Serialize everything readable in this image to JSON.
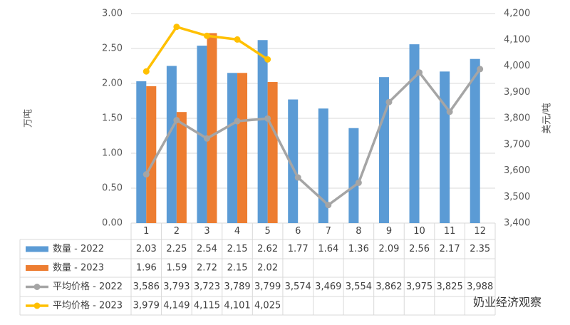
{
  "chart_data": {
    "type": "bar-line",
    "categories": [
      "1",
      "2",
      "3",
      "4",
      "5",
      "6",
      "7",
      "8",
      "9",
      "10",
      "11",
      "12"
    ],
    "y_label": "万吨",
    "y2_label": "美元/吨",
    "ylim": [
      0,
      3
    ],
    "yticks": [
      {
        "value": 0,
        "label": "0.00"
      },
      {
        "value": 0.5,
        "label": "0.50"
      },
      {
        "value": 1,
        "label": "1.00"
      },
      {
        "value": 1.5,
        "label": "1.50"
      },
      {
        "value": 2,
        "label": "2.00"
      },
      {
        "value": 2.5,
        "label": "2.50"
      },
      {
        "value": 3,
        "label": "3.00"
      }
    ],
    "y2lim": [
      3400,
      4200
    ],
    "y2ticks": [
      {
        "value": 3400,
        "label": "3,400"
      },
      {
        "value": 3500,
        "label": "3,500"
      },
      {
        "value": 3600,
        "label": "3,600"
      },
      {
        "value": 3700,
        "label": "3,700"
      },
      {
        "value": 3800,
        "label": "3,800"
      },
      {
        "value": 3900,
        "label": "3,900"
      },
      {
        "value": 4000,
        "label": "4,000"
      },
      {
        "value": 4100,
        "label": "4,100"
      },
      {
        "value": 4200,
        "label": "4,200"
      }
    ],
    "grid": true,
    "series": [
      {
        "name": "数量 - 2022",
        "type": "bar",
        "color": "#5b9bd5",
        "values": [
          2.03,
          2.25,
          2.54,
          2.15,
          2.62,
          1.77,
          1.64,
          1.36,
          2.09,
          2.56,
          2.17,
          2.35
        ]
      },
      {
        "name": "数量 - 2023",
        "type": "bar",
        "color": "#ed7d31",
        "values": [
          1.96,
          1.59,
          2.72,
          2.15,
          2.02,
          null,
          null,
          null,
          null,
          null,
          null,
          null
        ]
      },
      {
        "name": "平均价格 - 2022",
        "type": "line",
        "axis": "y2",
        "color": "#a5a5a5",
        "values": [
          3586,
          3793,
          3723,
          3789,
          3799,
          3574,
          3469,
          3554,
          3862,
          3975,
          3825,
          3988
        ],
        "value_labels": [
          "3,586",
          "3,793",
          "3,723",
          "3,789",
          "3,799",
          "3,574",
          "3,469",
          "3,554",
          "3,862",
          "3,975",
          "3,825",
          "3,988"
        ]
      },
      {
        "name": "平均价格 - 2023",
        "type": "line",
        "axis": "y2",
        "color": "#ffc000",
        "values": [
          3979,
          4149,
          4115,
          4101,
          4025,
          null,
          null,
          null,
          null,
          null,
          null,
          null
        ],
        "value_labels": [
          "3,979",
          "4,149",
          "4,115",
          "4,101",
          "4,025",
          null,
          null,
          null,
          null,
          null,
          null,
          null
        ]
      }
    ],
    "watermark": "奶业经济观察"
  }
}
